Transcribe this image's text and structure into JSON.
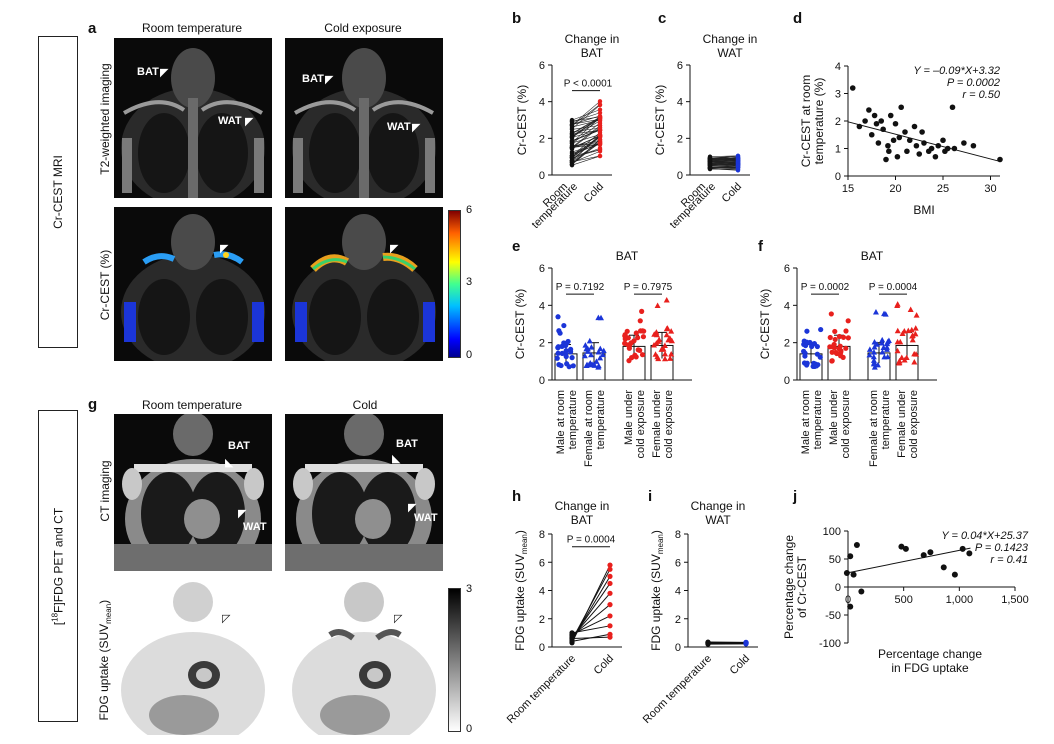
{
  "sections": {
    "top": "Cr-CEST MRI",
    "bottom": "[18F]FDG PET and CT",
    "bottom_prefix": "[",
    "bottom_sup": "18",
    "bottom_rest": "F]FDG PET and CT"
  },
  "panel_a": {
    "letter": "a",
    "col1": "Room temperature",
    "col2": "Cold exposure",
    "row1": "T2-weighted imaging",
    "row2": "Cr-CEST (%)",
    "bat": "BAT",
    "wat": "WAT",
    "colorbar_max": "6",
    "colorbar_mid": "3",
    "colorbar_min": "0"
  },
  "panel_g": {
    "letter": "g",
    "col1": "Room temperature",
    "col2": "Cold",
    "row1": "CT imaging",
    "row2": "FDG uptake (SUVmean)",
    "row2_main": "FDG uptake (SUV",
    "row2_sub": "mean",
    "row2_end": ")",
    "bat": "BAT",
    "wat": "WAT",
    "colorbar_max": "3",
    "colorbar_min": "0"
  },
  "chart_data": [
    {
      "panel": "b",
      "type": "line",
      "title": "Change in BAT",
      "title1": "Change in",
      "title2": "BAT",
      "ylabel": "Cr-CEST (%)",
      "ylim": [
        0,
        6
      ],
      "yticks": [
        "0",
        "2",
        "4",
        "6"
      ],
      "categories": [
        "Room temperature",
        "Cold"
      ],
      "cat1a": "Room",
      "cat1b": "temperature",
      "cat2": "Cold",
      "annotation": "P < 0.0001",
      "colors": {
        "room": "#111111",
        "cold": "#e8201d"
      }
    },
    {
      "panel": "c",
      "type": "line",
      "title": "Change in WAT",
      "title1": "Change in",
      "title2": "WAT",
      "ylabel": "Cr-CEST (%)",
      "ylim": [
        0,
        6
      ],
      "yticks": [
        "0",
        "2",
        "4",
        "6"
      ],
      "categories": [
        "Room temperature",
        "Cold"
      ],
      "cat1a": "Room",
      "cat1b": "temperature",
      "cat2": "Cold",
      "colors": {
        "room": "#111111",
        "cold": "#1b35d8"
      }
    },
    {
      "panel": "d",
      "type": "scatter",
      "xlabel": "BMI",
      "ylabel": "Cr-CEST at room temperature (%)",
      "ylabel1": "Cr-CEST at room",
      "ylabel2": "temperature (%)",
      "xlim": [
        15,
        31
      ],
      "ylim": [
        0,
        4
      ],
      "xticks": [
        "15",
        "20",
        "25",
        "30"
      ],
      "yticks": [
        "0",
        "1",
        "2",
        "3",
        "4"
      ],
      "equation": "Y = –0.09*X+3.32",
      "p": "P = 0.0002",
      "r": "r = 0.50",
      "slope": -0.09,
      "intercept": 3.32,
      "points": [
        [
          15.5,
          3.2
        ],
        [
          16.2,
          1.8
        ],
        [
          16.8,
          2.0
        ],
        [
          17.2,
          2.4
        ],
        [
          17.5,
          1.5
        ],
        [
          17.8,
          2.2
        ],
        [
          18.0,
          1.9
        ],
        [
          18.2,
          1.2
        ],
        [
          18.5,
          2.0
        ],
        [
          18.7,
          1.7
        ],
        [
          19.0,
          0.6
        ],
        [
          19.2,
          1.1
        ],
        [
          19.3,
          0.9
        ],
        [
          19.5,
          2.2
        ],
        [
          19.8,
          1.3
        ],
        [
          20.0,
          1.9
        ],
        [
          20.2,
          0.7
        ],
        [
          20.4,
          1.4
        ],
        [
          20.6,
          2.5
        ],
        [
          21.0,
          1.6
        ],
        [
          21.2,
          0.9
        ],
        [
          21.5,
          1.3
        ],
        [
          22.0,
          1.8
        ],
        [
          22.2,
          1.1
        ],
        [
          22.5,
          0.8
        ],
        [
          22.8,
          1.6
        ],
        [
          23.0,
          1.2
        ],
        [
          23.5,
          0.9
        ],
        [
          23.8,
          1.0
        ],
        [
          24.2,
          0.7
        ],
        [
          24.5,
          1.1
        ],
        [
          25.0,
          1.3
        ],
        [
          25.2,
          0.9
        ],
        [
          25.5,
          1.0
        ],
        [
          26.0,
          2.5
        ],
        [
          26.2,
          1.0
        ],
        [
          27.2,
          1.2
        ],
        [
          28.2,
          1.1
        ],
        [
          31.0,
          0.6
        ]
      ]
    },
    {
      "panel": "e",
      "type": "bar",
      "title": "BAT",
      "ylabel": "Cr-CEST (%)",
      "ylim": [
        0,
        6
      ],
      "yticks": [
        "0",
        "2",
        "4",
        "6"
      ],
      "categories": [
        "Male at room temperature",
        "Female at room temperature",
        "Male under cold exposure",
        "Female under cold exposure"
      ],
      "cat_lines": [
        [
          "Male at room",
          "temperature"
        ],
        [
          "Female at room",
          "temperature"
        ],
        [
          "Male under",
          "cold exposure"
        ],
        [
          "Female under",
          "cold exposure"
        ]
      ],
      "values": [
        1.4,
        1.45,
        1.8,
        1.85
      ],
      "errors": [
        0.5,
        0.55,
        0.6,
        0.7
      ],
      "colors": [
        "#1b35d8",
        "#1b35d8",
        "#e8201d",
        "#e8201d"
      ],
      "markers": [
        "circle",
        "triangle",
        "circle",
        "triangle"
      ],
      "annotations": [
        {
          "text": "P = 0.7192",
          "pair": [
            0,
            1
          ]
        },
        {
          "text": "P = 0.7975",
          "pair": [
            2,
            3
          ]
        }
      ]
    },
    {
      "panel": "f",
      "type": "bar",
      "title": "BAT",
      "ylabel": "Cr-CEST (%)",
      "ylim": [
        0,
        6
      ],
      "yticks": [
        "0",
        "2",
        "4",
        "6"
      ],
      "categories": [
        "Male at room temperature",
        "Male under cold exposure",
        "Female at room temperature",
        "Female under cold exposure"
      ],
      "cat_lines": [
        [
          "Male at room",
          "temperature"
        ],
        [
          "Male under",
          "cold exposure"
        ],
        [
          "Female at room",
          "temperature"
        ],
        [
          "Female under",
          "cold exposure"
        ]
      ],
      "values": [
        1.4,
        1.8,
        1.45,
        1.85
      ],
      "errors": [
        0.5,
        0.6,
        0.55,
        0.7
      ],
      "colors": [
        "#1b35d8",
        "#e8201d",
        "#1b35d8",
        "#e8201d"
      ],
      "markers": [
        "circle",
        "circle",
        "triangle",
        "triangle"
      ],
      "annotations": [
        {
          "text": "P = 0.0002",
          "pair": [
            0,
            1
          ]
        },
        {
          "text": "P = 0.0004",
          "pair": [
            2,
            3
          ]
        }
      ]
    },
    {
      "panel": "h",
      "type": "line",
      "title": "Change in BAT",
      "title1": "Change in",
      "title2": "BAT",
      "ylabel": "FDG uptake (SUVmean)",
      "ylim": [
        0,
        8
      ],
      "yticks": [
        "0",
        "2",
        "4",
        "6",
        "8"
      ],
      "categories": [
        "Room temperature",
        "Cold"
      ],
      "annotation": "P = 0.0004",
      "room": [
        0.3,
        0.5,
        0.6,
        0.7,
        0.8,
        0.9,
        1.0,
        0.4,
        0.6,
        0.5
      ],
      "cold": [
        5.8,
        5.5,
        4.5,
        3.8,
        3.0,
        2.2,
        1.5,
        0.9,
        0.7,
        5.0
      ],
      "colors": {
        "room": "#111111",
        "cold": "#e8201d"
      }
    },
    {
      "panel": "i",
      "type": "line",
      "title": "Change in WAT",
      "title1": "Change in",
      "title2": "WAT",
      "ylabel": "FDG uptake (SUVmean)",
      "ylim": [
        0,
        8
      ],
      "yticks": [
        "0",
        "2",
        "4",
        "6",
        "8"
      ],
      "categories": [
        "Room temperature",
        "Cold"
      ],
      "room": [
        0.2,
        0.25,
        0.3,
        0.35,
        0.3,
        0.28,
        0.22,
        0.32,
        0.26,
        0.3
      ],
      "cold": [
        0.22,
        0.28,
        0.3,
        0.33,
        0.31,
        0.27,
        0.25,
        0.3,
        0.27,
        0.32
      ],
      "colors": {
        "room": "#111111",
        "cold": "#1b35d8"
      }
    },
    {
      "panel": "j",
      "type": "scatter",
      "xlabel": "Percentage change in FDG uptake",
      "xlabel1": "Percentage change",
      "xlabel2": "in FDG uptake",
      "ylabel": "Percentage change of Cr-CEST",
      "ylabel1": "Percentage change",
      "ylabel2": "of Cr-CEST",
      "xlim": [
        0,
        1500
      ],
      "ylim": [
        -100,
        100
      ],
      "xticks": [
        "0",
        "500",
        "1,000",
        "1,500"
      ],
      "yticks": [
        "-100",
        "-50",
        "0",
        "50",
        "100"
      ],
      "xtick_vals": [
        0,
        500,
        1000,
        1500
      ],
      "ytick_vals": [
        -100,
        -50,
        0,
        50,
        100
      ],
      "equation": "Y = 0.04*X+25.37",
      "p": "P = 0.1423",
      "r": "r = 0.41",
      "slope": 0.04,
      "intercept": 25.37,
      "points": [
        [
          -10,
          25
        ],
        [
          20,
          55
        ],
        [
          50,
          22
        ],
        [
          80,
          75
        ],
        [
          120,
          -8
        ],
        [
          20,
          -35
        ],
        [
          480,
          72
        ],
        [
          520,
          68
        ],
        [
          680,
          57
        ],
        [
          740,
          62
        ],
        [
          860,
          35
        ],
        [
          960,
          22
        ],
        [
          1030,
          68
        ],
        [
          1090,
          60
        ]
      ]
    }
  ]
}
